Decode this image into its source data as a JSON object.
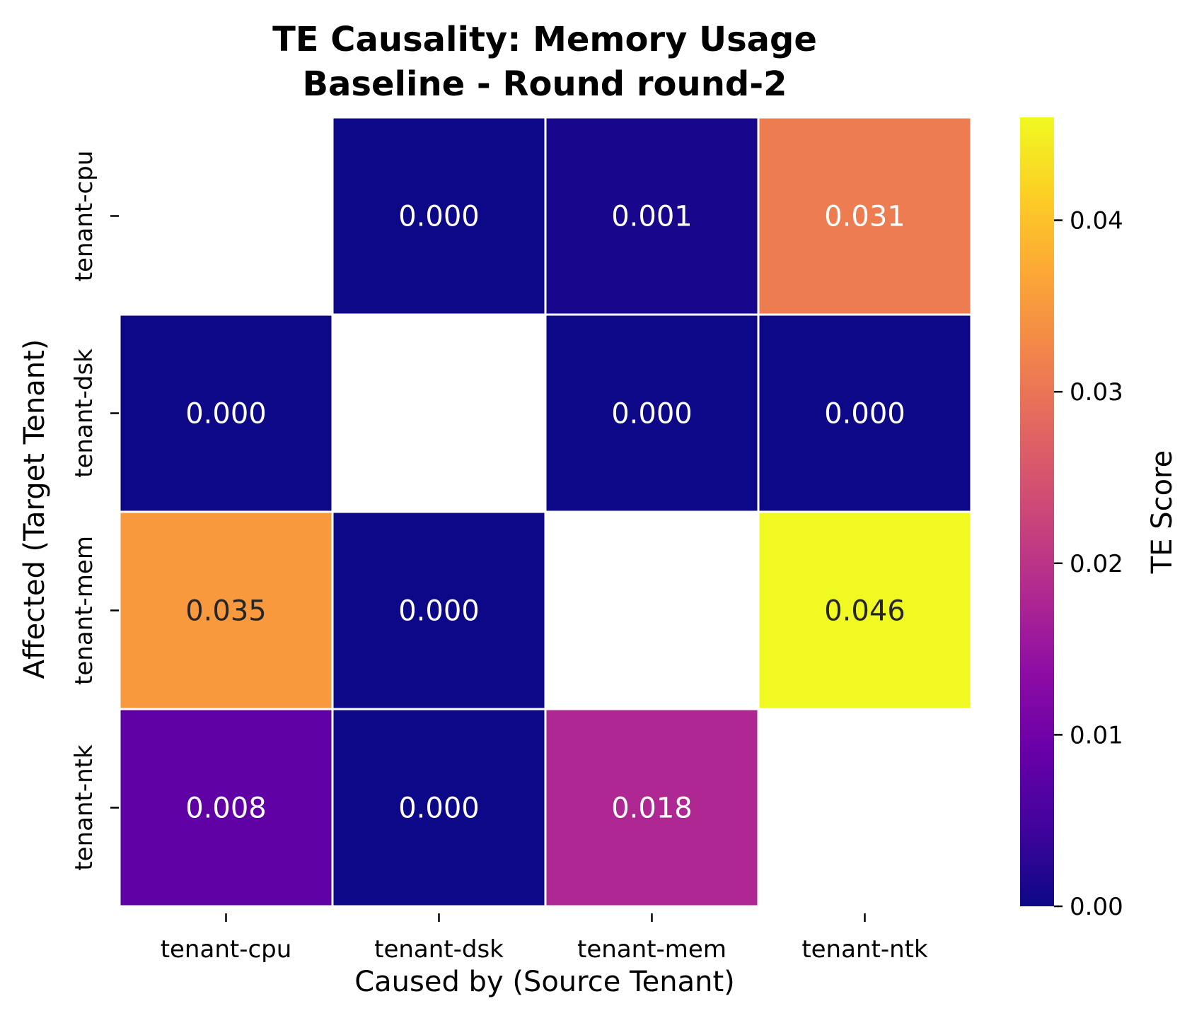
{
  "chart_data": {
    "type": "heatmap",
    "title_lines": [
      "TE Causality: Memory Usage",
      "Baseline - Round round-2"
    ],
    "xlabel": "Caused by (Source Tenant)",
    "ylabel": "Affected (Target Tenant)",
    "x_categories": [
      "tenant-cpu",
      "tenant-dsk",
      "tenant-mem",
      "tenant-ntk"
    ],
    "y_categories": [
      "tenant-cpu",
      "tenant-dsk",
      "tenant-mem",
      "tenant-ntk"
    ],
    "values": [
      [
        null,
        0.0,
        0.001,
        0.031
      ],
      [
        0.0,
        null,
        0.0,
        0.0
      ],
      [
        0.035,
        0.0,
        null,
        0.046
      ],
      [
        0.008,
        0.0,
        0.018,
        null
      ]
    ],
    "cell_labels": [
      [
        "",
        "0.000",
        "0.001",
        "0.031"
      ],
      [
        "0.000",
        "",
        "0.000",
        "0.000"
      ],
      [
        "0.035",
        "0.000",
        "",
        "0.046"
      ],
      [
        "0.008",
        "0.000",
        "0.018",
        ""
      ]
    ],
    "colormap": "plasma",
    "colorbar": {
      "label": "TE Score",
      "range": [
        0,
        0.046
      ],
      "ticks": [
        0.0,
        0.01,
        0.02,
        0.03,
        0.04
      ],
      "tick_labels": [
        "0.00",
        "0.01",
        "0.02",
        "0.03",
        "0.04"
      ]
    },
    "grid_line_color": "#ffffff"
  }
}
